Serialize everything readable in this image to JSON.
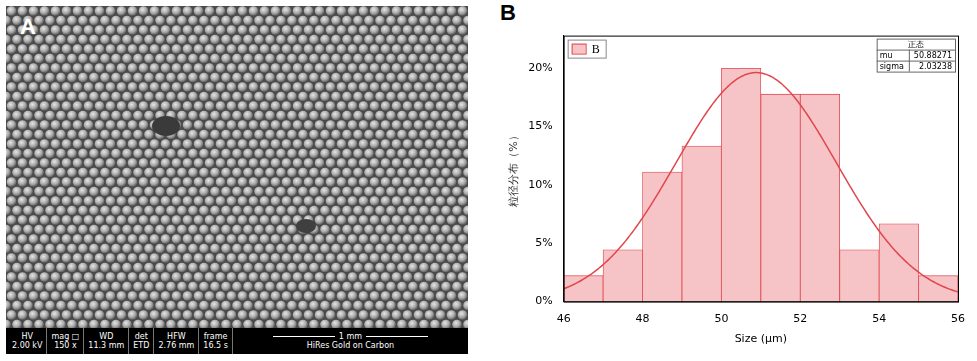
{
  "image_panel": {
    "panel_label": "A",
    "info_bar": {
      "fields": [
        {
          "label": "HV",
          "value": "2.00 kV"
        },
        {
          "label": "mag □",
          "value": "150 x"
        },
        {
          "label": "WD",
          "value": "11.3 mm"
        },
        {
          "label": "det",
          "value": "ETD"
        },
        {
          "label": "HFW",
          "value": "2.76 mm"
        },
        {
          "label": "frame",
          "value": "16.5 s"
        }
      ],
      "scale_bar": "1 mm",
      "sample": "HiRes Gold on Carbon"
    }
  },
  "chart_data": {
    "type": "histogram",
    "panel_label": "B",
    "x_label": "Size (μm)",
    "y_label": "粒径分布（%）",
    "bins": [
      46,
      47,
      48,
      49,
      50,
      51,
      52,
      53,
      54,
      55,
      56
    ],
    "series": [
      {
        "name": "B",
        "color": "#f6c3c6",
        "values": [
          2.22,
          4.44,
          11.11,
          13.33,
          20,
          17.78,
          17.78,
          4.44,
          6.67,
          2.22
        ]
      }
    ],
    "fit": {
      "title": "正态",
      "color": "#e0474c",
      "params": [
        {
          "name": "mu",
          "value": 50.88271
        },
        {
          "name": "sigma",
          "value": 2.03238
        }
      ]
    },
    "xlim": [
      46,
      56
    ],
    "xticks": [
      46,
      48,
      50,
      52,
      54,
      56
    ],
    "ylim": [
      0,
      22.8
    ],
    "yticks": [
      {
        "value": 0,
        "label": "0%"
      },
      {
        "value": 5,
        "label": "5%"
      },
      {
        "value": 10,
        "label": "10%"
      },
      {
        "value": 15,
        "label": "15%"
      },
      {
        "value": 20,
        "label": "20%"
      }
    ],
    "grid": false,
    "legend": "upper left"
  }
}
